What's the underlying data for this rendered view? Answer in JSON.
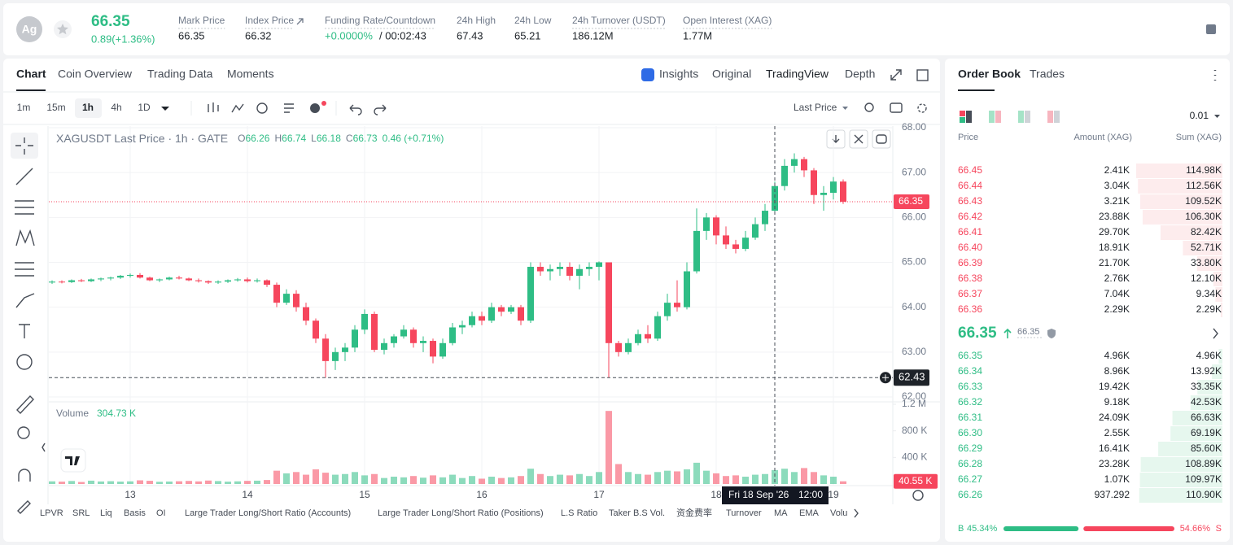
{
  "header": {
    "icon": "Ag",
    "price": "66.35",
    "change": "0.89(+1.36%)",
    "stats": [
      {
        "label": "Mark Price",
        "value": "66.35"
      },
      {
        "label": "Index Price",
        "value": "66.32"
      },
      {
        "label": "Funding Rate/Countdown",
        "value": "+0.0000%",
        "countdown": "/ 00:02:43"
      },
      {
        "label": "24h High",
        "value": "67.43"
      },
      {
        "label": "24h Low",
        "value": "65.21"
      },
      {
        "label": "24h Turnover (USDT)",
        "value": "186.12M"
      },
      {
        "label": "Open Interest (XAG)",
        "value": "1.77M"
      }
    ]
  },
  "tabs": [
    "Chart",
    "Coin Overview",
    "Trading Data",
    "Moments"
  ],
  "views": [
    "Insights",
    "Original",
    "TradingView",
    "Depth"
  ],
  "intervals": [
    "1m",
    "15m",
    "1h",
    "4h",
    "1D"
  ],
  "price_type": "Last Price",
  "indicators": [
    "LPVR",
    "SRL",
    "Liq",
    "Basis",
    "OI",
    "Large Trader Long/Short Ratio (Accounts)",
    "Large Trader Long/Short Ratio (Positions)",
    "L.S Ratio",
    "Taker B.S Vol.",
    "资金费率",
    "Turnover",
    "MA",
    "EMA",
    "Volu"
  ],
  "chart_data": {
    "type": "candlestick",
    "title": "XAGUSDT Last Price · 1h · GATE",
    "ohlc": [
      {
        "key": "O",
        "value": "66.26"
      },
      {
        "key": "H",
        "value": "66.74"
      },
      {
        "key": "L",
        "value": "66.18"
      },
      {
        "key": "C",
        "value": "66.73"
      }
    ],
    "change": "0.46 (+0.71%)",
    "up_color": "#2ebd85",
    "down_color": "#f6465d",
    "xticks": [
      {
        "value": 8,
        "label": "13"
      },
      {
        "value": 20,
        "label": "14"
      },
      {
        "value": 32,
        "label": "15"
      },
      {
        "value": 44,
        "label": "16"
      },
      {
        "value": 56,
        "label": "17"
      },
      {
        "value": 68,
        "label": "18"
      },
      {
        "value": 80,
        "label": "19"
      }
    ],
    "ylim": [
      62,
      68
    ],
    "yticks": [
      {
        "value": 62,
        "label": "62.00"
      },
      {
        "value": 63,
        "label": "63.00"
      },
      {
        "value": 64,
        "label": "64.00"
      },
      {
        "value": 65,
        "label": "65.00"
      },
      {
        "value": 66,
        "label": "66.00"
      },
      {
        "value": 67,
        "label": "67.00"
      },
      {
        "value": 68,
        "label": "68.00"
      }
    ],
    "candles": [
      [
        64.55,
        64.6,
        64.52,
        64.57
      ],
      [
        64.57,
        64.6,
        64.53,
        64.56
      ],
      [
        64.56,
        64.62,
        64.54,
        64.6
      ],
      [
        64.6,
        64.63,
        64.56,
        64.58
      ],
      [
        64.58,
        64.64,
        64.56,
        64.62
      ],
      [
        64.62,
        64.66,
        64.58,
        64.64
      ],
      [
        64.64,
        64.68,
        64.6,
        64.66
      ],
      [
        64.66,
        64.72,
        64.63,
        64.7
      ],
      [
        64.7,
        64.75,
        64.66,
        64.72
      ],
      [
        64.72,
        64.76,
        64.64,
        64.66
      ],
      [
        64.66,
        64.68,
        64.58,
        64.6
      ],
      [
        64.6,
        64.64,
        64.56,
        64.62
      ],
      [
        64.62,
        64.68,
        64.6,
        64.66
      ],
      [
        64.66,
        64.7,
        64.62,
        64.64
      ],
      [
        64.64,
        64.66,
        64.58,
        64.6
      ],
      [
        64.6,
        64.64,
        64.55,
        64.58
      ],
      [
        64.58,
        64.6,
        64.52,
        64.55
      ],
      [
        64.55,
        64.6,
        64.52,
        64.57
      ],
      [
        64.57,
        64.62,
        64.54,
        64.6
      ],
      [
        64.6,
        64.65,
        64.57,
        64.62
      ],
      [
        64.62,
        64.66,
        64.55,
        64.58
      ],
      [
        64.58,
        64.64,
        64.55,
        64.6
      ],
      [
        64.6,
        64.62,
        64.45,
        64.5
      ],
      [
        64.5,
        64.55,
        64.0,
        64.1
      ],
      [
        64.1,
        64.4,
        64.05,
        64.3
      ],
      [
        64.3,
        64.38,
        63.9,
        64.0
      ],
      [
        64.0,
        64.1,
        63.6,
        63.7
      ],
      [
        63.7,
        63.75,
        63.2,
        63.3
      ],
      [
        63.3,
        63.4,
        62.43,
        62.8
      ],
      [
        62.8,
        63.1,
        62.6,
        63.0
      ],
      [
        63.0,
        63.2,
        62.8,
        63.1
      ],
      [
        63.1,
        63.6,
        63.0,
        63.5
      ],
      [
        63.5,
        63.95,
        63.4,
        63.85
      ],
      [
        63.85,
        63.9,
        63.0,
        63.05
      ],
      [
        63.05,
        63.3,
        62.95,
        63.2
      ],
      [
        63.2,
        63.4,
        63.1,
        63.35
      ],
      [
        63.35,
        63.6,
        63.3,
        63.5
      ],
      [
        63.5,
        63.55,
        63.1,
        63.2
      ],
      [
        63.2,
        63.35,
        63.0,
        63.25
      ],
      [
        63.25,
        63.3,
        62.75,
        62.9
      ],
      [
        62.9,
        63.3,
        62.85,
        63.2
      ],
      [
        63.2,
        63.65,
        63.15,
        63.55
      ],
      [
        63.55,
        63.7,
        63.4,
        63.6
      ],
      [
        63.6,
        63.9,
        63.55,
        63.8
      ],
      [
        63.8,
        63.9,
        63.6,
        63.7
      ],
      [
        63.7,
        64.1,
        63.65,
        64.0
      ],
      [
        64.0,
        64.05,
        63.8,
        63.9
      ],
      [
        63.9,
        64.05,
        63.85,
        64.0
      ],
      [
        64.0,
        64.05,
        63.6,
        63.7
      ],
      [
        63.7,
        65.0,
        63.65,
        64.9
      ],
      [
        64.9,
        65.0,
        64.7,
        64.8
      ],
      [
        64.8,
        64.95,
        64.6,
        64.85
      ],
      [
        64.85,
        65.0,
        64.7,
        64.9
      ],
      [
        64.9,
        65.0,
        64.6,
        64.7
      ],
      [
        64.7,
        64.95,
        64.4,
        64.85
      ],
      [
        64.85,
        65.0,
        64.7,
        64.9
      ],
      [
        64.9,
        65.02,
        64.6,
        65.0
      ],
      [
        65.0,
        65.0,
        62.43,
        63.2
      ],
      [
        63.2,
        63.25,
        62.9,
        63.0
      ],
      [
        63.0,
        63.3,
        62.95,
        63.2
      ],
      [
        63.2,
        63.5,
        63.15,
        63.4
      ],
      [
        63.4,
        63.6,
        63.2,
        63.3
      ],
      [
        63.3,
        63.9,
        63.25,
        63.8
      ],
      [
        63.8,
        64.3,
        63.7,
        64.1
      ],
      [
        64.1,
        64.6,
        63.9,
        64.0
      ],
      [
        64.0,
        65.0,
        63.95,
        64.8
      ],
      [
        64.8,
        66.2,
        64.75,
        65.7
      ],
      [
        65.7,
        66.1,
        65.5,
        66.0
      ],
      [
        66.0,
        66.05,
        65.4,
        65.6
      ],
      [
        65.6,
        65.8,
        65.3,
        65.4
      ],
      [
        65.4,
        65.5,
        65.2,
        65.3
      ],
      [
        65.3,
        65.7,
        65.25,
        65.55
      ],
      [
        65.55,
        66.0,
        65.5,
        65.85
      ],
      [
        65.85,
        66.3,
        65.7,
        66.15
      ],
      [
        66.15,
        66.8,
        66.1,
        66.7
      ],
      [
        66.7,
        67.3,
        66.6,
        67.15
      ],
      [
        67.15,
        67.43,
        67.0,
        67.3
      ],
      [
        67.3,
        67.35,
        66.9,
        67.05
      ],
      [
        67.05,
        67.1,
        66.3,
        66.5
      ],
      [
        66.5,
        66.7,
        66.15,
        66.55
      ],
      [
        66.55,
        66.9,
        66.4,
        66.8
      ],
      [
        66.8,
        66.85,
        66.3,
        66.35
      ]
    ],
    "last_price": 66.35,
    "crosshair_price": 62.43,
    "crosshair_time": "Fri 18 Sep '26",
    "crosshair_hour": "12:00",
    "volume_title": "Volume",
    "volume_value": "304.73 K",
    "volumes": [
      40000,
      35000,
      45000,
      30000,
      50000,
      38000,
      42000,
      36000,
      40000,
      55000,
      48000,
      33000,
      37000,
      41000,
      46000,
      39000,
      52000,
      44000,
      35000,
      40000,
      47000,
      50000,
      60000,
      200000,
      160000,
      180000,
      140000,
      220000,
      170000,
      140000,
      150000,
      180000,
      130000,
      150000,
      90000,
      110000,
      100000,
      120000,
      95000,
      130000,
      100000,
      140000,
      90000,
      120000,
      80000,
      110000,
      90000,
      100000,
      120000,
      230000,
      150000,
      120000,
      140000,
      130000,
      150000,
      120000,
      180000,
      1100000,
      300000,
      180000,
      150000,
      140000,
      180000,
      200000,
      190000,
      220000,
      320000,
      200000,
      160000,
      120000,
      130000,
      110000,
      140000,
      150000,
      210000,
      230000,
      180000,
      240000,
      180000,
      130000,
      110000,
      40550
    ],
    "vlim": [
      0,
      1200000
    ],
    "vticks": [
      {
        "value": 400000,
        "label": "400 K"
      },
      {
        "value": 800000,
        "label": "800 K"
      },
      {
        "value": 1200000,
        "label": "1.2 M"
      }
    ],
    "last_volume_label": "40.55 K"
  },
  "order_book": {
    "tabs": [
      "Order Book",
      "Trades"
    ],
    "precision": "0.01",
    "headers": [
      "Price",
      "Amount (XAG)",
      "Sum (XAG)"
    ],
    "asks": {
      "prices": [
        "66.45",
        "66.44",
        "66.43",
        "66.42",
        "66.41",
        "66.40",
        "66.39",
        "66.38",
        "66.37",
        "66.36"
      ],
      "amounts": [
        "2.41K",
        "3.04K",
        "3.21K",
        "23.88K",
        "29.70K",
        "18.91K",
        "21.70K",
        "2.76K",
        "7.04K",
        "2.29K"
      ],
      "sums": [
        114980,
        112560,
        109520,
        106300,
        82420,
        52710,
        33800,
        12100,
        9340,
        2290
      ],
      "sum_labels": [
        "114.98K",
        "112.56K",
        "109.52K",
        "106.30K",
        "82.42K",
        "52.71K",
        "33.80K",
        "12.10K",
        "9.34K",
        "2.29K"
      ]
    },
    "mid_price": "66.35",
    "mark_price": "66.35",
    "bids": {
      "prices": [
        "66.35",
        "66.34",
        "66.33",
        "66.32",
        "66.31",
        "66.30",
        "66.29",
        "66.28",
        "66.27",
        "66.26"
      ],
      "amounts": [
        "4.96K",
        "8.96K",
        "19.42K",
        "9.18K",
        "24.09K",
        "2.55K",
        "16.41K",
        "23.28K",
        "1.07K",
        "937.292"
      ],
      "sums": [
        4960,
        13920,
        33350,
        42530,
        66630,
        69190,
        85600,
        108890,
        109970,
        110900
      ],
      "sum_labels": [
        "4.96K",
        "13.92K",
        "33.35K",
        "42.53K",
        "66.63K",
        "69.19K",
        "85.60K",
        "108.89K",
        "109.97K",
        "110.90K"
      ]
    },
    "buy_key": "B",
    "sell_key": "S",
    "buy": {
      "value": 45.34,
      "label": "45.34%"
    },
    "sell": {
      "value": 54.66,
      "label": "54.66%"
    }
  }
}
